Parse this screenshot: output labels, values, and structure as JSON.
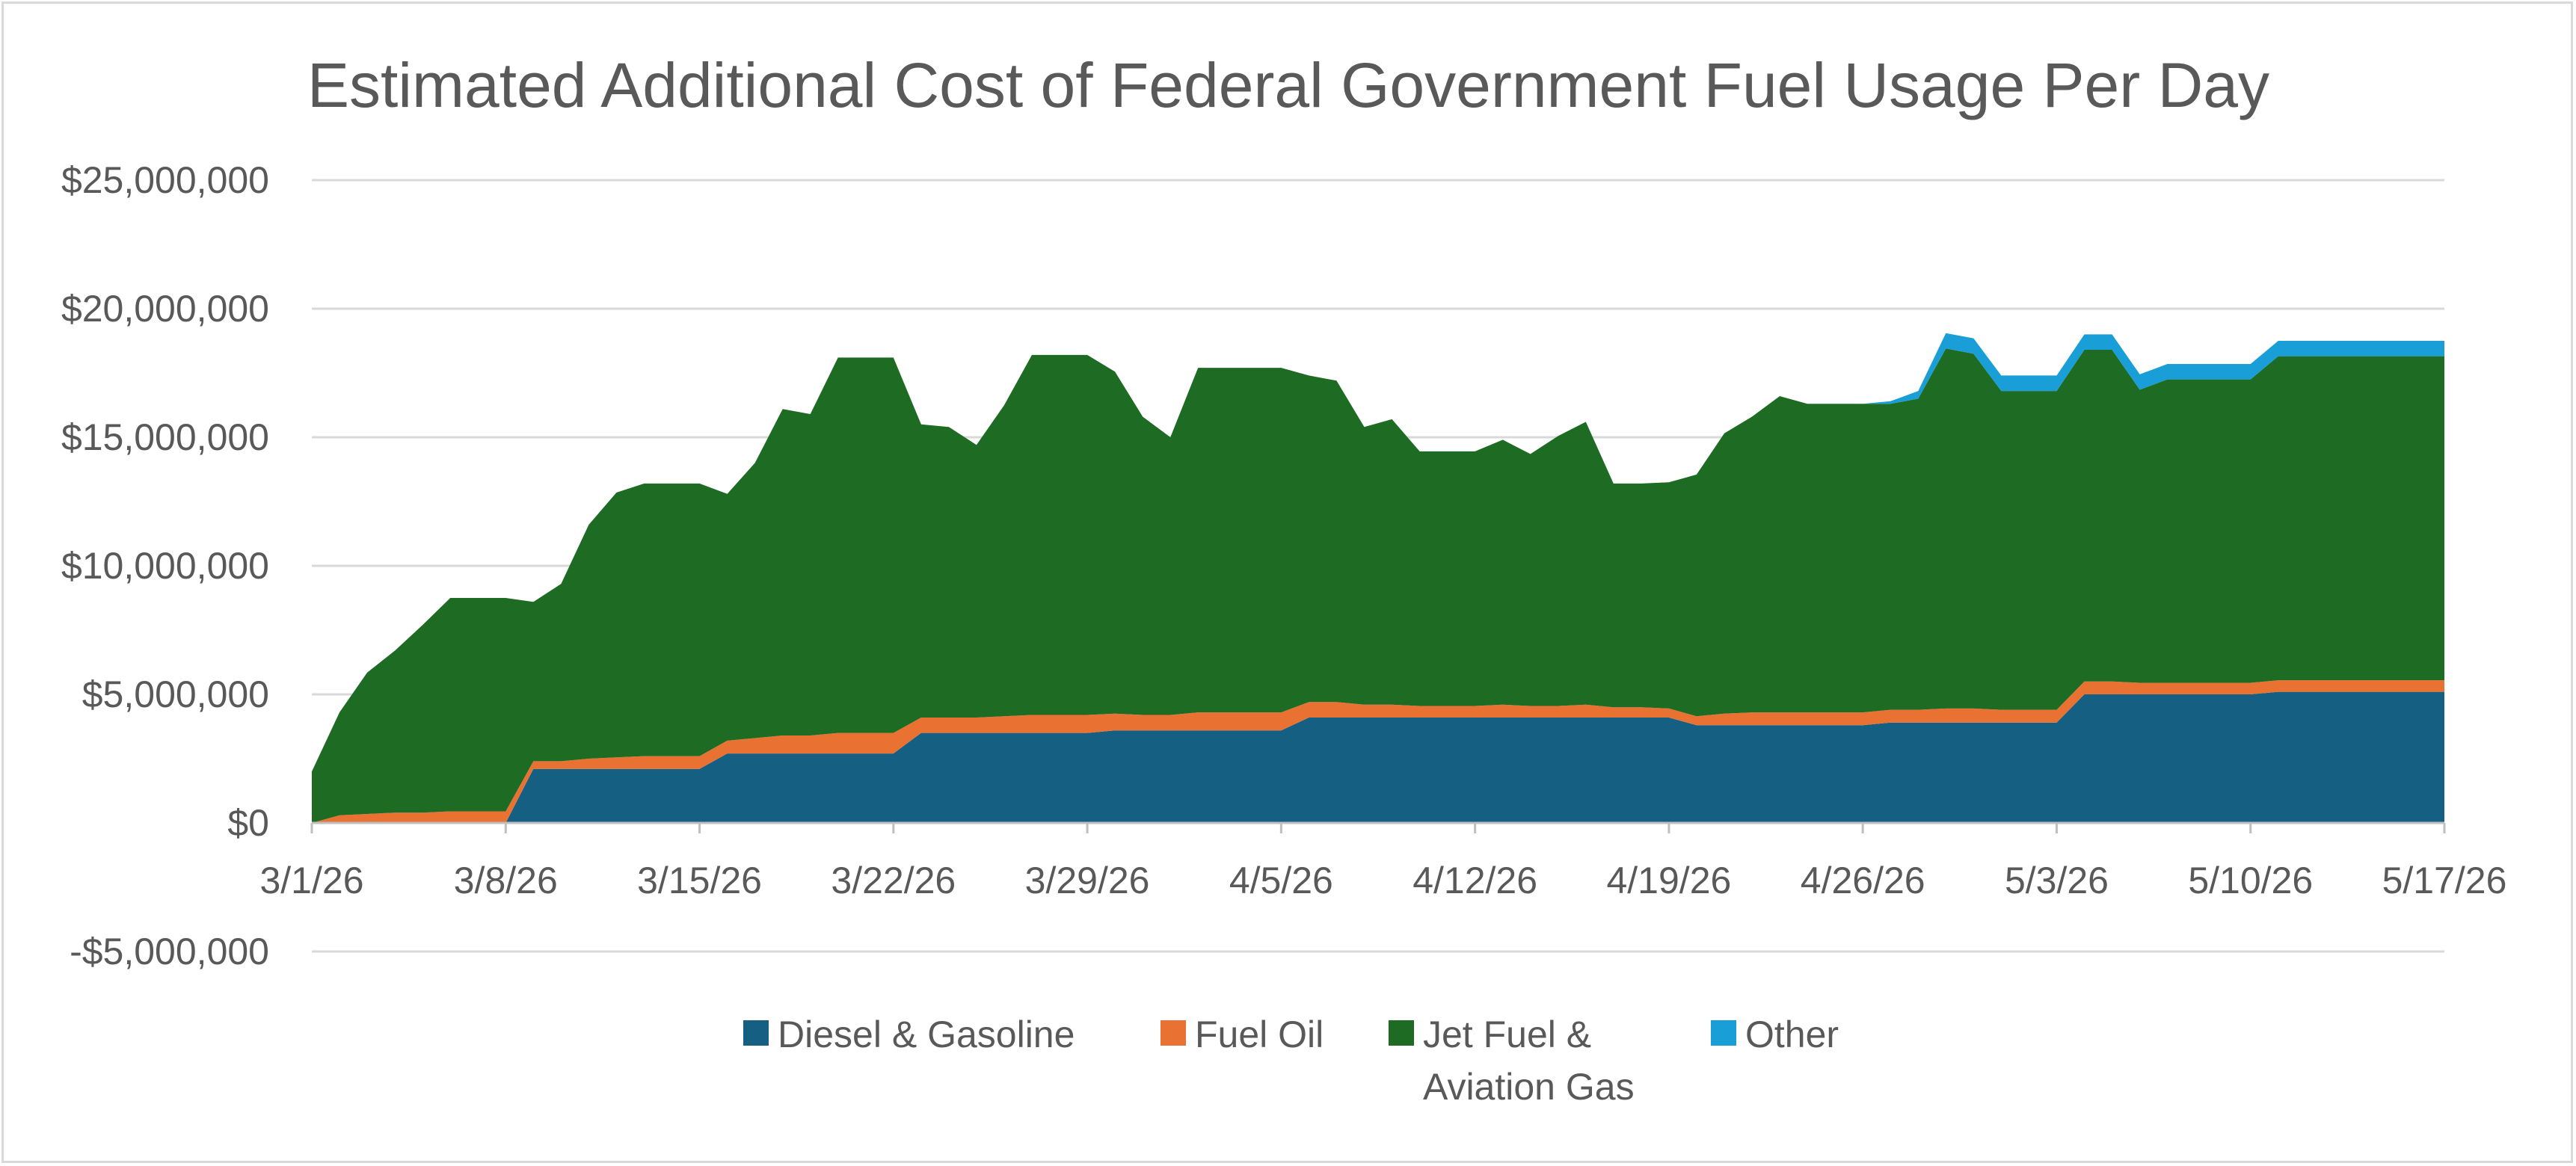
{
  "chart_data": {
    "type": "area",
    "stacked": true,
    "title": "Estimated Additional Cost of Federal Government Fuel Usage Per Day",
    "xlabel": "",
    "ylabel": "",
    "ylim": [
      -5000000,
      25000000
    ],
    "yticks": [
      -5000000,
      0,
      5000000,
      10000000,
      15000000,
      20000000,
      25000000
    ],
    "ytick_labels": [
      "-$5,000,000",
      "$0",
      "$5,000,000",
      "$10,000,000",
      "$15,000,000",
      "$20,000,000",
      "$25,000,000"
    ],
    "x_range": [
      "3/1/26",
      "5/17/26"
    ],
    "xtick_labels": [
      "3/1/26",
      "3/8/26",
      "3/15/26",
      "3/22/26",
      "3/29/26",
      "4/5/26",
      "4/12/26",
      "4/19/26",
      "4/26/26",
      "5/3/26",
      "5/10/26",
      "5/17/26"
    ],
    "grid": "horizontal",
    "legend_position": "bottom",
    "x": [
      "3/1/26",
      "3/2/26",
      "3/3/26",
      "3/4/26",
      "3/5/26",
      "3/6/26",
      "3/7/26",
      "3/8/26",
      "3/9/26",
      "3/10/26",
      "3/11/26",
      "3/12/26",
      "3/13/26",
      "3/14/26",
      "3/15/26",
      "3/16/26",
      "3/17/26",
      "3/18/26",
      "3/19/26",
      "3/20/26",
      "3/21/26",
      "3/22/26",
      "3/23/26",
      "3/24/26",
      "3/25/26",
      "3/26/26",
      "3/27/26",
      "3/28/26",
      "3/29/26",
      "3/30/26",
      "3/31/26",
      "4/1/26",
      "4/2/26",
      "4/3/26",
      "4/4/26",
      "4/5/26",
      "4/6/26",
      "4/7/26",
      "4/8/26",
      "4/9/26",
      "4/10/26",
      "4/11/26",
      "4/12/26",
      "4/13/26",
      "4/14/26",
      "4/15/26",
      "4/16/26",
      "4/17/26",
      "4/18/26",
      "4/19/26",
      "4/20/26",
      "4/21/26",
      "4/22/26",
      "4/23/26",
      "4/24/26",
      "4/25/26",
      "4/26/26",
      "4/27/26",
      "4/28/26",
      "4/29/26",
      "4/30/26",
      "5/1/26",
      "5/2/26",
      "5/3/26",
      "5/4/26",
      "5/5/26",
      "5/6/26",
      "5/7/26",
      "5/8/26",
      "5/9/26",
      "5/10/26",
      "5/11/26",
      "5/12/26",
      "5/13/26",
      "5/14/26",
      "5/15/26",
      "5/16/26",
      "5/17/26"
    ],
    "series": [
      {
        "name": "Diesel & Gasoline",
        "color": "#156082",
        "values": [
          0,
          0,
          0,
          0,
          0,
          0,
          0,
          0,
          2100000,
          2100000,
          2100000,
          2100000,
          2100000,
          2100000,
          2100000,
          2700000,
          2700000,
          2700000,
          2700000,
          2700000,
          2700000,
          2700000,
          3500000,
          3500000,
          3500000,
          3500000,
          3500000,
          3500000,
          3500000,
          3600000,
          3600000,
          3600000,
          3600000,
          3600000,
          3600000,
          3600000,
          4100000,
          4100000,
          4100000,
          4100000,
          4100000,
          4100000,
          4100000,
          4100000,
          4100000,
          4100000,
          4100000,
          4100000,
          4100000,
          4100000,
          3800000,
          3800000,
          3800000,
          3800000,
          3800000,
          3800000,
          3800000,
          3900000,
          3900000,
          3900000,
          3900000,
          3900000,
          3900000,
          3900000,
          5000000,
          5000000,
          5000000,
          5000000,
          5000000,
          5000000,
          5000000,
          5100000,
          5100000,
          5100000,
          5100000,
          5100000,
          5100000,
          5100000
        ]
      },
      {
        "name": "Fuel Oil",
        "color": "#e97132",
        "values": [
          0,
          300000,
          350000,
          400000,
          400000,
          450000,
          450000,
          450000,
          300000,
          300000,
          400000,
          450000,
          500000,
          500000,
          500000,
          500000,
          600000,
          700000,
          700000,
          800000,
          800000,
          800000,
          600000,
          600000,
          600000,
          650000,
          700000,
          700000,
          700000,
          650000,
          600000,
          600000,
          700000,
          700000,
          700000,
          700000,
          600000,
          600000,
          500000,
          500000,
          450000,
          450000,
          450000,
          500000,
          450000,
          450000,
          500000,
          400000,
          400000,
          350000,
          350000,
          450000,
          500000,
          500000,
          500000,
          500000,
          500000,
          500000,
          500000,
          550000,
          550000,
          500000,
          500000,
          500000,
          500000,
          500000,
          450000,
          450000,
          450000,
          450000,
          450000,
          450000,
          450000,
          450000,
          450000,
          450000,
          450000,
          450000
        ]
      },
      {
        "name": "Jet Fuel &\nAviation Gas",
        "color": "#1e6b24",
        "values": [
          2000000,
          4000000,
          5500000,
          6300000,
          7300000,
          8300000,
          8300000,
          8300000,
          6200000,
          6900000,
          9100000,
          10300000,
          10600000,
          10600000,
          10600000,
          9600000,
          10700000,
          12700000,
          12500000,
          14600000,
          14600000,
          14600000,
          11400000,
          11300000,
          10600000,
          12100000,
          14000000,
          14000000,
          14000000,
          13300000,
          11600000,
          10800000,
          13400000,
          13400000,
          13400000,
          13400000,
          12700000,
          12500000,
          10800000,
          11100000,
          9900000,
          9900000,
          9900000,
          10300000,
          9800000,
          10500000,
          11000000,
          8700000,
          8700000,
          8800000,
          9400000,
          10900000,
          11500000,
          12300000,
          12000000,
          12000000,
          12000000,
          11900000,
          12100000,
          14000000,
          13800000,
          12400000,
          12400000,
          12400000,
          12900000,
          12900000,
          11400000,
          11800000,
          11800000,
          11800000,
          11800000,
          12600000,
          12600000,
          12600000,
          12600000,
          12600000,
          12600000,
          12600000
        ]
      },
      {
        "name": "Other",
        "color": "#1a9ed8",
        "values": [
          0,
          0,
          0,
          0,
          0,
          0,
          0,
          0,
          0,
          0,
          0,
          0,
          0,
          0,
          0,
          0,
          0,
          0,
          0,
          0,
          0,
          0,
          0,
          0,
          0,
          0,
          0,
          0,
          0,
          0,
          0,
          0,
          0,
          0,
          0,
          0,
          0,
          0,
          0,
          0,
          0,
          0,
          0,
          0,
          0,
          0,
          0,
          0,
          0,
          0,
          0,
          0,
          0,
          0,
          0,
          0,
          0,
          100000,
          300000,
          600000,
          600000,
          600000,
          600000,
          600000,
          600000,
          600000,
          600000,
          600000,
          600000,
          600000,
          600000,
          600000,
          600000,
          600000,
          600000,
          600000,
          600000,
          600000
        ]
      }
    ]
  }
}
